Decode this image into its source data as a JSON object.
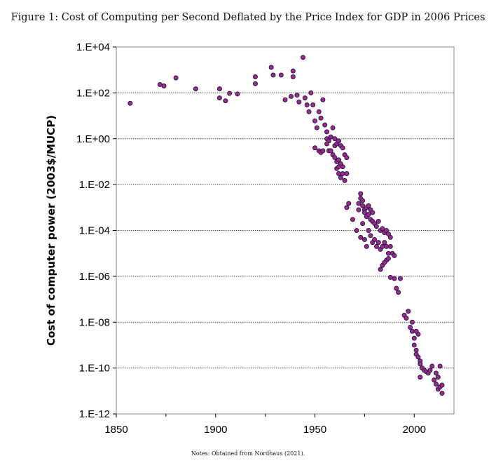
{
  "figure": {
    "title": "Figure 1: Cost of Computing per Second Deflated by the Price Index for GDP in 2006 Prices",
    "notes": "Notes: Obtained from Nordhaus (2021)."
  },
  "colors": {
    "point_fill": "#9b2d86",
    "point_stroke": "#2a1550",
    "grid": "#555555"
  },
  "chart_data": {
    "type": "scatter",
    "title": "",
    "xlabel": "",
    "ylabel": "Cost of computer power (2003$/MUCP)",
    "y_scale": "log",
    "xlim": [
      1850,
      2020
    ],
    "ylim": [
      1e-12,
      10000.0
    ],
    "x_ticks": [
      1850,
      1900,
      1950,
      2000
    ],
    "y_ticks": [
      {
        "value": 10000.0,
        "label": "1.E+04"
      },
      {
        "value": 100.0,
        "label": "1.E+02"
      },
      {
        "value": 1.0,
        "label": "1.E+00"
      },
      {
        "value": 0.01,
        "label": "1.E-02"
      },
      {
        "value": 0.0001,
        "label": "1.E-04"
      },
      {
        "value": 1e-06,
        "label": "1.E-06"
      },
      {
        "value": 1e-08,
        "label": "1.E-08"
      },
      {
        "value": 1e-10,
        "label": "1.E-10"
      },
      {
        "value": 1e-12,
        "label": "1.E-12"
      }
    ],
    "grid": "horizontal dotted at each decade-pair tick",
    "points": [
      [
        1857,
        35
      ],
      [
        1872,
        230
      ],
      [
        1874,
        200
      ],
      [
        1880,
        450
      ],
      [
        1890,
        150
      ],
      [
        1902,
        150
      ],
      [
        1902,
        60
      ],
      [
        1905,
        45
      ],
      [
        1907,
        95
      ],
      [
        1911,
        90
      ],
      [
        1920,
        500
      ],
      [
        1920,
        250
      ],
      [
        1928,
        1300
      ],
      [
        1929,
        600
      ],
      [
        1933,
        600
      ],
      [
        1935,
        50
      ],
      [
        1938,
        70
      ],
      [
        1939,
        900
      ],
      [
        1939,
        500
      ],
      [
        1941,
        80
      ],
      [
        1942,
        40
      ],
      [
        1944,
        3500
      ],
      [
        1945,
        60
      ],
      [
        1946,
        30
      ],
      [
        1947,
        15
      ],
      [
        1948,
        100
      ],
      [
        1949,
        30
      ],
      [
        1950,
        6
      ],
      [
        1951,
        3
      ],
      [
        1952,
        15
      ],
      [
        1953,
        8
      ],
      [
        1954,
        50
      ],
      [
        1955,
        4
      ],
      [
        1956,
        2
      ],
      [
        1956,
        1
      ],
      [
        1957,
        0.8
      ],
      [
        1958,
        1.2
      ],
      [
        1959,
        3
      ],
      [
        1960,
        1
      ],
      [
        1960,
        0.5
      ],
      [
        1961,
        0.6
      ],
      [
        1962,
        0.8
      ],
      [
        1963,
        0.5
      ],
      [
        1964,
        0.4
      ],
      [
        1965,
        0.2
      ],
      [
        1966,
        0.15
      ],
      [
        1950,
        0.4
      ],
      [
        1952,
        0.3
      ],
      [
        1953,
        0.25
      ],
      [
        1954,
        0.3
      ],
      [
        1956,
        0.6
      ],
      [
        1957,
        0.3
      ],
      [
        1958,
        0.3
      ],
      [
        1959,
        0.2
      ],
      [
        1960,
        0.15
      ],
      [
        1961,
        0.1
      ],
      [
        1961,
        0.05
      ],
      [
        1962,
        0.06
      ],
      [
        1962,
        0.03
      ],
      [
        1963,
        0.02
      ],
      [
        1964,
        0.03
      ],
      [
        1965,
        0.015
      ],
      [
        1966,
        0.03
      ],
      [
        1964,
        0.06
      ],
      [
        1963,
        0.08
      ],
      [
        1962,
        0.12
      ],
      [
        1966,
        0.001
      ],
      [
        1967,
        0.0015
      ],
      [
        1969,
        0.0003
      ],
      [
        1972,
        0.0015
      ],
      [
        1972,
        0.0008
      ],
      [
        1973,
        0.004
      ],
      [
        1973,
        0.0025
      ],
      [
        1974,
        0.002
      ],
      [
        1974,
        0.0012
      ],
      [
        1975,
        0.0008
      ],
      [
        1975,
        0.0006
      ],
      [
        1976,
        0.001
      ],
      [
        1976,
        0.0004
      ],
      [
        1977,
        0.0012
      ],
      [
        1977,
        0.0005
      ],
      [
        1978,
        0.0008
      ],
      [
        1978,
        0.0003
      ],
      [
        1979,
        0.0006
      ],
      [
        1979,
        0.00025
      ],
      [
        1980,
        0.0002
      ],
      [
        1981,
        0.00015
      ],
      [
        1982,
        0.00025
      ],
      [
        1983,
        0.0001
      ],
      [
        1984,
        0.00012
      ],
      [
        1985,
        8e-05
      ],
      [
        1986,
        0.0001
      ],
      [
        1987,
        7e-05
      ],
      [
        1988,
        5e-05
      ],
      [
        1971,
        0.0001
      ],
      [
        1973,
        5e-05
      ],
      [
        1974,
        0.0002
      ],
      [
        1975,
        4e-05
      ],
      [
        1976,
        2e-05
      ],
      [
        1977,
        0.0001
      ],
      [
        1978,
        6e-05
      ],
      [
        1979,
        3e-05
      ],
      [
        1980,
        4e-05
      ],
      [
        1981,
        2e-05
      ],
      [
        1982,
        3e-05
      ],
      [
        1983,
        1.5e-05
      ],
      [
        1984,
        2e-05
      ],
      [
        1985,
        3e-05
      ],
      [
        1986,
        2e-05
      ],
      [
        1987,
        1e-05
      ],
      [
        1988,
        2e-05
      ],
      [
        1989,
        1e-05
      ],
      [
        1990,
        8e-06
      ],
      [
        1986,
        5e-06
      ],
      [
        1984,
        3e-06
      ],
      [
        1983,
        2e-06
      ],
      [
        1985,
        4e-06
      ],
      [
        1987,
        6e-06
      ],
      [
        1988,
        9e-07
      ],
      [
        1990,
        8e-07
      ],
      [
        1991,
        3e-07
      ],
      [
        1992,
        2e-07
      ],
      [
        1993,
        8e-07
      ],
      [
        1995,
        2e-08
      ],
      [
        1996,
        1.5e-08
      ],
      [
        1997,
        3e-08
      ],
      [
        1998,
        6e-09
      ],
      [
        1999,
        4e-09
      ],
      [
        1999,
        1e-08
      ],
      [
        2000,
        2e-09
      ],
      [
        2000,
        1e-09
      ],
      [
        2001,
        6e-10
      ],
      [
        2001,
        4e-10
      ],
      [
        2002,
        3e-10
      ],
      [
        2003,
        2e-10
      ],
      [
        2003,
        1.5e-10
      ],
      [
        2004,
        1e-10
      ],
      [
        2005,
        8e-11
      ],
      [
        2006,
        7e-11
      ],
      [
        2007,
        6e-11
      ],
      [
        2008,
        8e-11
      ],
      [
        2009,
        1.2e-10
      ],
      [
        2010,
        3e-11
      ],
      [
        2011,
        2e-11
      ],
      [
        2012,
        4e-11
      ],
      [
        2012,
        1.2e-11
      ],
      [
        2013,
        1.5e-11
      ],
      [
        2014,
        8e-12
      ],
      [
        2014,
        1.8e-11
      ],
      [
        2013,
        1.2e-10
      ],
      [
        2011,
        6e-11
      ],
      [
        2003,
        4e-11
      ],
      [
        2002,
        3e-09
      ],
      [
        2001,
        4e-09
      ]
    ]
  }
}
